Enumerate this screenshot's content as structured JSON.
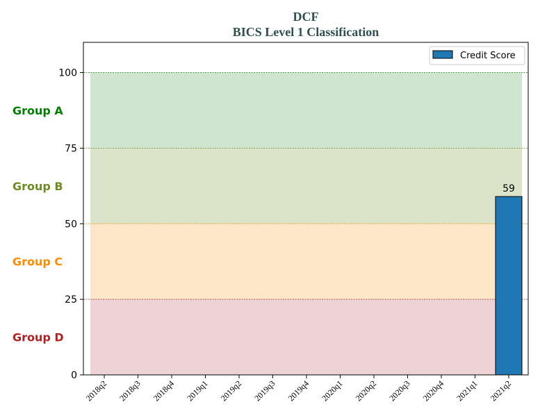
{
  "chart_data": {
    "type": "bar",
    "title": "DCF",
    "subtitle": "BICS Level 1 Classification",
    "xlabel": "",
    "ylabel": "",
    "categories": [
      "2018q2",
      "2018q3",
      "2018q4",
      "2019q1",
      "2019q2",
      "2019q3",
      "2019q4",
      "2020q1",
      "2020q2",
      "2020q3",
      "2020q4",
      "2021q1",
      "2021q2"
    ],
    "series": [
      {
        "name": "Credit Score",
        "values": [
          null,
          null,
          null,
          null,
          null,
          null,
          null,
          null,
          null,
          null,
          null,
          null,
          59
        ],
        "color": "#1f77b4"
      }
    ],
    "data_labels": [
      "",
      "",
      "",
      "",
      "",
      "",
      "",
      "",
      "",
      "",
      "",
      "",
      "59"
    ],
    "ylim": [
      0,
      110
    ],
    "yticks": [
      0,
      25,
      50,
      75,
      100
    ],
    "grid": false,
    "legend_position": "top-right",
    "bands": [
      {
        "label": "Group A",
        "from": 75,
        "to": 100,
        "fill": "#cfe5cf",
        "line": "#2e8b2e",
        "text_color": "#008000"
      },
      {
        "label": "Group B",
        "from": 50,
        "to": 75,
        "fill": "#dbe3c8",
        "line": "#6b8e23",
        "text_color": "#6b8e23"
      },
      {
        "label": "Group C",
        "from": 25,
        "to": 50,
        "fill": "#fee7c9",
        "line": "#ff8c00",
        "text_color": "#ff8c00"
      },
      {
        "label": "Group D",
        "from": 0,
        "to": 25,
        "fill": "#edd3d5",
        "line": "#b22222",
        "text_color": "#b22222"
      }
    ]
  }
}
